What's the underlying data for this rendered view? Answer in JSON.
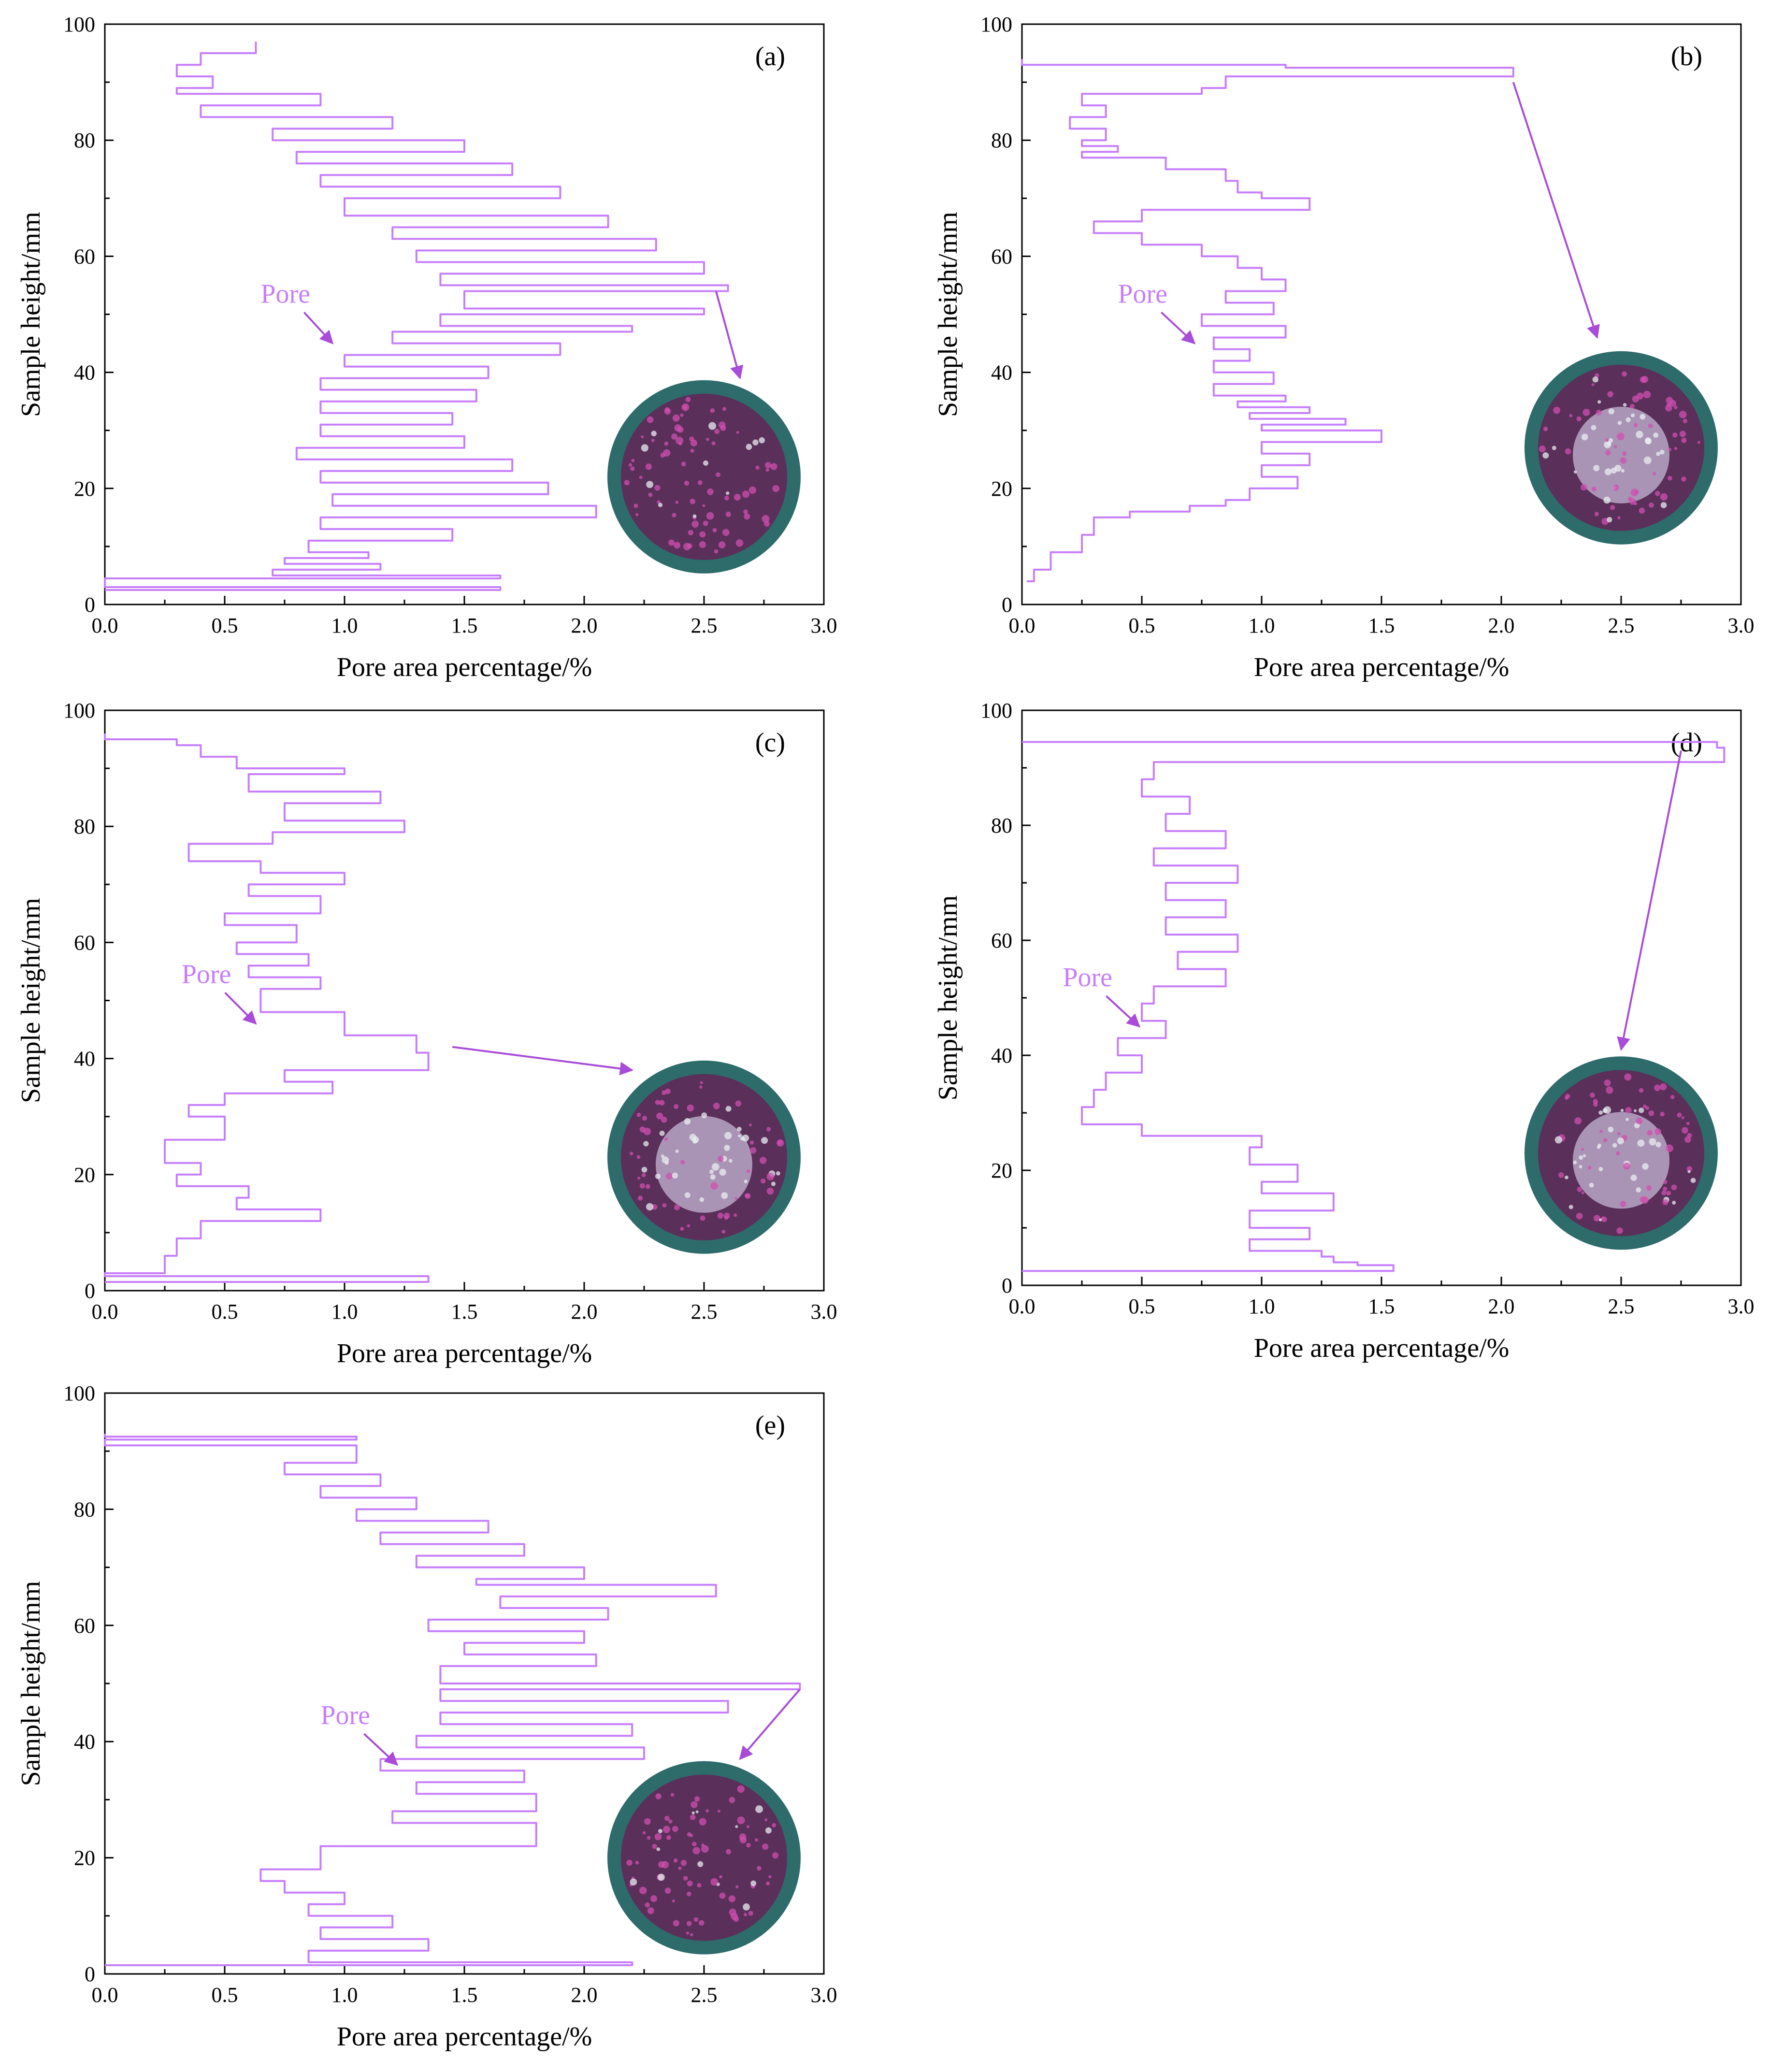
{
  "colors": {
    "series": "#c77dff",
    "arrow": "#a94cd9",
    "annotation_text": "#c77dff",
    "axis": "#000000",
    "sample_rim": "#2e6b6b",
    "sample_core": "#5a2f5a",
    "sample_speckle_magenta": "#d04fb0",
    "sample_speckle_white": "#e8eef2"
  },
  "chart_data": [
    {
      "id": "a",
      "type": "line",
      "panel_label": "(a)",
      "xlabel": "Pore area percentage/%",
      "ylabel": "Sample height/mm",
      "xlim": [
        0,
        3.0
      ],
      "ylim": [
        0,
        100
      ],
      "xticks": [
        "0.0",
        "0.5",
        "1.0",
        "1.5",
        "2.0",
        "2.5",
        "3.0"
      ],
      "yticks": [
        "0",
        "20",
        "40",
        "60",
        "80",
        "100"
      ],
      "annotation": "Pore",
      "annotation_data": {
        "text_x": 0.65,
        "text_y": 52,
        "arrow_end_x": 0.95,
        "arrow_end_y": 45
      },
      "inset_arrow": {
        "from_x": 2.55,
        "from_y": 54,
        "to_x": 2.65,
        "to_y": 39
      },
      "inset_center": {
        "x": 2.5,
        "y": 22
      },
      "inset_style": "dark",
      "series": [
        {
          "name": "Pore",
          "x": [
            0.63,
            0.4,
            0.3,
            0.45,
            0.3,
            0.9,
            0.4,
            1.2,
            0.7,
            1.5,
            0.8,
            1.7,
            0.9,
            1.9,
            1.0,
            2.1,
            1.2,
            2.3,
            1.3,
            2.5,
            1.4,
            2.6,
            1.5,
            2.5,
            1.4,
            2.2,
            1.2,
            1.9,
            1.0,
            1.6,
            0.9,
            1.55,
            0.9,
            1.45,
            0.9,
            1.5,
            0.8,
            1.7,
            0.9,
            1.85,
            0.95,
            2.05,
            0.9,
            1.45,
            0.85,
            1.1,
            0.75,
            1.15,
            0.7,
            1.65,
            0.0,
            1.65,
            0.0
          ],
          "y": [
            97,
            95,
            93,
            91,
            89,
            88,
            86,
            84,
            82,
            80,
            78,
            76,
            74,
            72,
            70,
            67,
            65,
            63,
            61,
            59,
            57,
            55,
            54,
            51,
            50,
            48,
            47,
            45,
            43,
            41,
            39,
            37,
            35,
            33,
            31,
            29,
            27,
            25,
            23,
            21,
            19,
            17,
            15,
            13,
            11,
            9,
            8,
            7,
            6,
            5,
            4.5,
            3,
            2.5
          ]
        }
      ]
    },
    {
      "id": "b",
      "type": "line",
      "panel_label": "(b)",
      "xlabel": "Pore area percentage/%",
      "ylabel": "Sample height/mm",
      "xlim": [
        0,
        3.0
      ],
      "ylim": [
        0,
        100
      ],
      "xticks": [
        "0.0",
        "0.5",
        "1.0",
        "1.5",
        "2.0",
        "2.5",
        "3.0"
      ],
      "yticks": [
        "0",
        "20",
        "40",
        "60",
        "80",
        "100"
      ],
      "annotation": "Pore",
      "annotation_data": {
        "text_x": 0.4,
        "text_y": 52,
        "arrow_end_x": 0.72,
        "arrow_end_y": 45
      },
      "inset_arrow": {
        "from_x": 2.05,
        "from_y": 90,
        "to_x": 2.4,
        "to_y": 46
      },
      "inset_center": {
        "x": 2.5,
        "y": 27
      },
      "inset_style": "light",
      "series": [
        {
          "name": "Pore",
          "x": [
            0.0,
            1.1,
            2.05,
            0.85,
            0.75,
            0.25,
            0.35,
            0.2,
            0.35,
            0.25,
            0.4,
            0.25,
            0.6,
            0.85,
            0.9,
            1.0,
            1.2,
            0.5,
            0.3,
            0.5,
            0.75,
            0.9,
            1.0,
            1.1,
            0.85,
            1.05,
            0.75,
            1.1,
            0.8,
            0.95,
            0.8,
            1.05,
            0.8,
            1.1,
            0.9,
            1.2,
            0.95,
            1.35,
            1.0,
            1.5,
            1.0,
            1.2,
            1.0,
            1.15,
            0.95,
            0.85,
            0.7,
            0.45,
            0.3,
            0.25,
            0.12,
            0.05,
            0.02
          ],
          "y": [
            94,
            93,
            92.5,
            91,
            89,
            88,
            86,
            84,
            82,
            80,
            79,
            78,
            77,
            75,
            73,
            71,
            70,
            68,
            66,
            64,
            62,
            60,
            58,
            56,
            54,
            52,
            50,
            48,
            46,
            44,
            42,
            40,
            38,
            36,
            35,
            34,
            33,
            32,
            31,
            30,
            28,
            26,
            24,
            22,
            20,
            18,
            17,
            16,
            15,
            12,
            9,
            6,
            4
          ]
        }
      ]
    },
    {
      "id": "c",
      "type": "line",
      "panel_label": "(c)",
      "xlabel": "Pore area percentage/%",
      "ylabel": "Sample height/mm",
      "xlim": [
        0,
        3.0
      ],
      "ylim": [
        0,
        100
      ],
      "xticks": [
        "0.0",
        "0.5",
        "1.0",
        "1.5",
        "2.0",
        "2.5",
        "3.0"
      ],
      "yticks": [
        "0",
        "20",
        "40",
        "60",
        "80",
        "100"
      ],
      "annotation": "Pore",
      "annotation_data": {
        "text_x": 0.32,
        "text_y": 53,
        "arrow_end_x": 0.63,
        "arrow_end_y": 46
      },
      "inset_arrow": {
        "from_x": 1.45,
        "from_y": 42,
        "to_x": 2.2,
        "to_y": 38
      },
      "inset_center": {
        "x": 2.5,
        "y": 23
      },
      "inset_style": "light",
      "series": [
        {
          "name": "Pore",
          "x": [
            0.0,
            0.3,
            0.4,
            0.55,
            1.0,
            0.6,
            1.15,
            0.75,
            1.25,
            0.7,
            0.35,
            0.65,
            1.0,
            0.6,
            0.9,
            0.5,
            0.8,
            0.55,
            0.85,
            0.6,
            0.9,
            0.65,
            1.0,
            1.3,
            1.35,
            0.75,
            0.95,
            0.5,
            0.35,
            0.5,
            0.25,
            0.4,
            0.3,
            0.6,
            0.55,
            0.9,
            0.4,
            0.3,
            0.25,
            0.0,
            1.35,
            0.0
          ],
          "y": [
            96,
            95,
            94,
            92,
            90,
            89,
            86,
            84,
            81,
            79,
            77,
            74,
            72,
            70,
            68,
            65,
            63,
            60,
            58,
            56,
            54,
            52,
            48,
            44,
            41,
            38,
            36,
            34,
            32,
            30,
            26,
            22,
            20,
            18,
            16,
            14,
            12,
            9,
            6,
            3,
            2.5,
            1.5
          ]
        }
      ]
    },
    {
      "id": "d",
      "type": "line",
      "panel_label": "(d)",
      "xlabel": "Pore area percentage/%",
      "ylabel": "Sample height/mm",
      "xlim": [
        0,
        3.0
      ],
      "ylim": [
        0,
        100
      ],
      "xticks": [
        "0.0",
        "0.5",
        "1.0",
        "1.5",
        "2.0",
        "2.5",
        "3.0"
      ],
      "yticks": [
        "0",
        "20",
        "40",
        "60",
        "80",
        "100"
      ],
      "annotation": "Pore",
      "annotation_data": {
        "text_x": 0.17,
        "text_y": 52,
        "arrow_end_x": 0.49,
        "arrow_end_y": 45
      },
      "inset_arrow": {
        "from_x": 2.75,
        "from_y": 93,
        "to_x": 2.5,
        "to_y": 41
      },
      "inset_center": {
        "x": 2.5,
        "y": 23
      },
      "inset_style": "light",
      "series": [
        {
          "name": "Pore",
          "x": [
            0.0,
            2.9,
            2.93,
            0.55,
            0.5,
            0.7,
            0.6,
            0.85,
            0.55,
            0.9,
            0.6,
            0.85,
            0.6,
            0.9,
            0.65,
            0.85,
            0.55,
            0.5,
            0.6,
            0.4,
            0.5,
            0.35,
            0.3,
            0.25,
            0.5,
            1.0,
            0.95,
            1.15,
            1.0,
            1.3,
            0.95,
            1.2,
            0.95,
            1.25,
            1.3,
            1.4,
            1.55,
            0.0
          ],
          "y": [
            94.5,
            94.5,
            93.5,
            91,
            88,
            85,
            82,
            79,
            76,
            73,
            70,
            67,
            64,
            61,
            58,
            55,
            52,
            49,
            46,
            43,
            40,
            37,
            34,
            31,
            28,
            26,
            24,
            21,
            18,
            16,
            13,
            10,
            8,
            6,
            5,
            4,
            3.5,
            2.5
          ]
        }
      ]
    },
    {
      "id": "e",
      "type": "line",
      "panel_label": "(e)",
      "xlabel": "Pore area percentage/%",
      "ylabel": "Sample height/mm",
      "xlim": [
        0,
        3.0
      ],
      "ylim": [
        0,
        100
      ],
      "xticks": [
        "0.0",
        "0.5",
        "1.0",
        "1.5",
        "2.0",
        "2.5",
        "3.0"
      ],
      "yticks": [
        "0",
        "20",
        "40",
        "60",
        "80",
        "100"
      ],
      "annotation": "Pore",
      "annotation_data": {
        "text_x": 0.9,
        "text_y": 43,
        "arrow_end_x": 1.22,
        "arrow_end_y": 36
      },
      "inset_arrow": {
        "from_x": 2.9,
        "from_y": 49,
        "to_x": 2.65,
        "to_y": 37
      },
      "inset_center": {
        "x": 2.5,
        "y": 20
      },
      "inset_style": "dark",
      "series": [
        {
          "name": "Pore",
          "x": [
            0.0,
            1.05,
            0.0,
            1.05,
            0.75,
            1.15,
            0.9,
            1.3,
            1.05,
            1.6,
            1.15,
            1.75,
            1.3,
            2.0,
            1.55,
            2.55,
            1.65,
            2.1,
            1.35,
            2.0,
            1.5,
            2.05,
            1.4,
            2.9,
            1.4,
            2.6,
            1.4,
            2.2,
            1.3,
            2.25,
            1.15,
            1.75,
            1.3,
            1.8,
            1.2,
            1.8,
            0.9,
            0.65,
            0.75,
            1.0,
            0.85,
            1.2,
            0.9,
            1.35,
            0.85,
            2.2,
            0.0
          ],
          "y": [
            93,
            92.5,
            92,
            91,
            88,
            86,
            84,
            82,
            80,
            78,
            76,
            74,
            72,
            70,
            68,
            67,
            65,
            63,
            61,
            59,
            57,
            55,
            53,
            50,
            49,
            47,
            45,
            43,
            41,
            39,
            37,
            35,
            33,
            31,
            28,
            26,
            22,
            18,
            16,
            14,
            12,
            10,
            8,
            6,
            4,
            2,
            1.5
          ]
        }
      ]
    }
  ]
}
